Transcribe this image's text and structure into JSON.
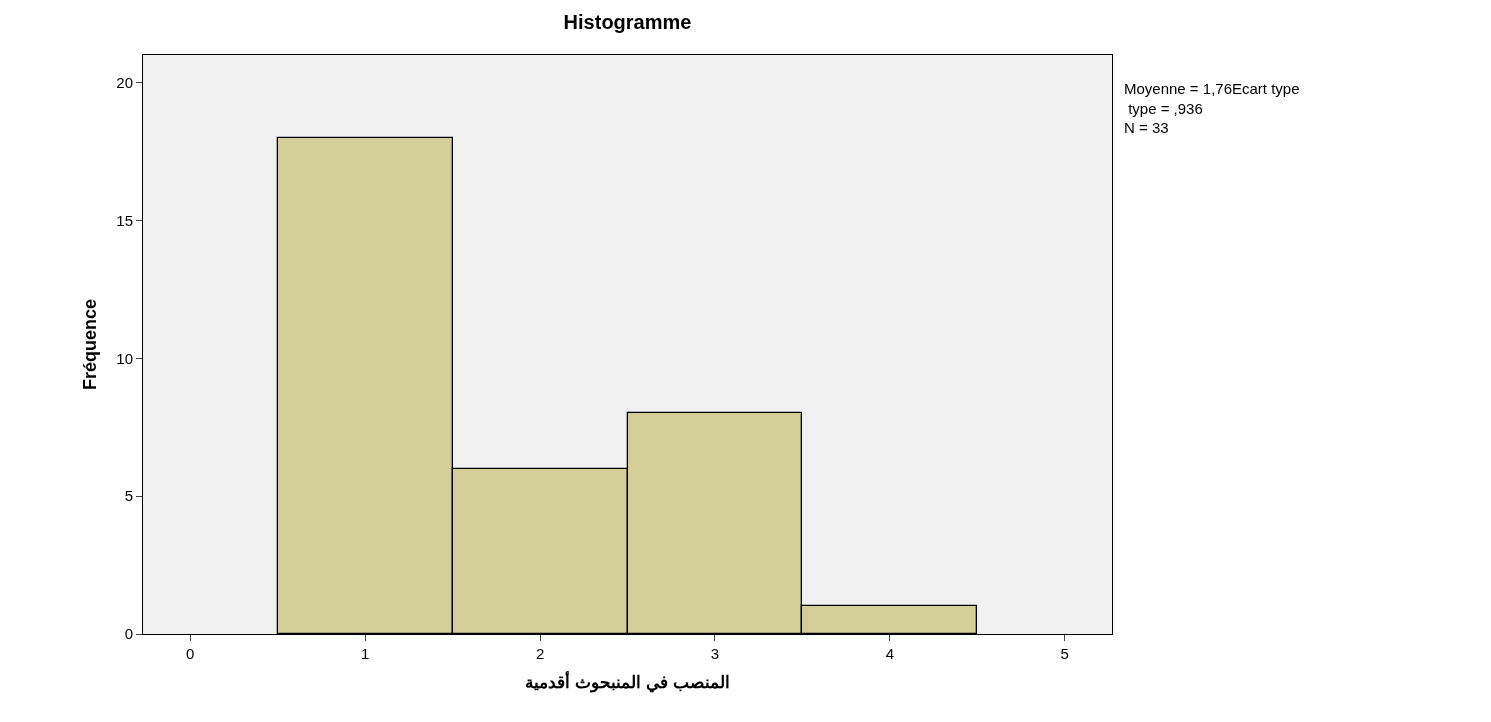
{
  "chart_data": {
    "type": "histogram",
    "title": "Histogramme",
    "xlabel": "المنصب في المنبحوث أقدمية",
    "ylabel": "Fréquence",
    "bins": [
      0.5,
      1.5,
      2.5,
      3.5,
      4.5
    ],
    "values": [
      18,
      6,
      8,
      1
    ],
    "color": "#d3ce97",
    "xlim": [
      -0.27,
      5.27
    ],
    "xticks": [
      0,
      1,
      2,
      3,
      4,
      5
    ],
    "ylim": [
      0,
      21
    ],
    "yticks": [
      0,
      5,
      10,
      15,
      20
    ],
    "grid": false,
    "annotations": [
      "Moyenne = 1,76Ecart type\n type = ,936\nN = 33"
    ]
  }
}
